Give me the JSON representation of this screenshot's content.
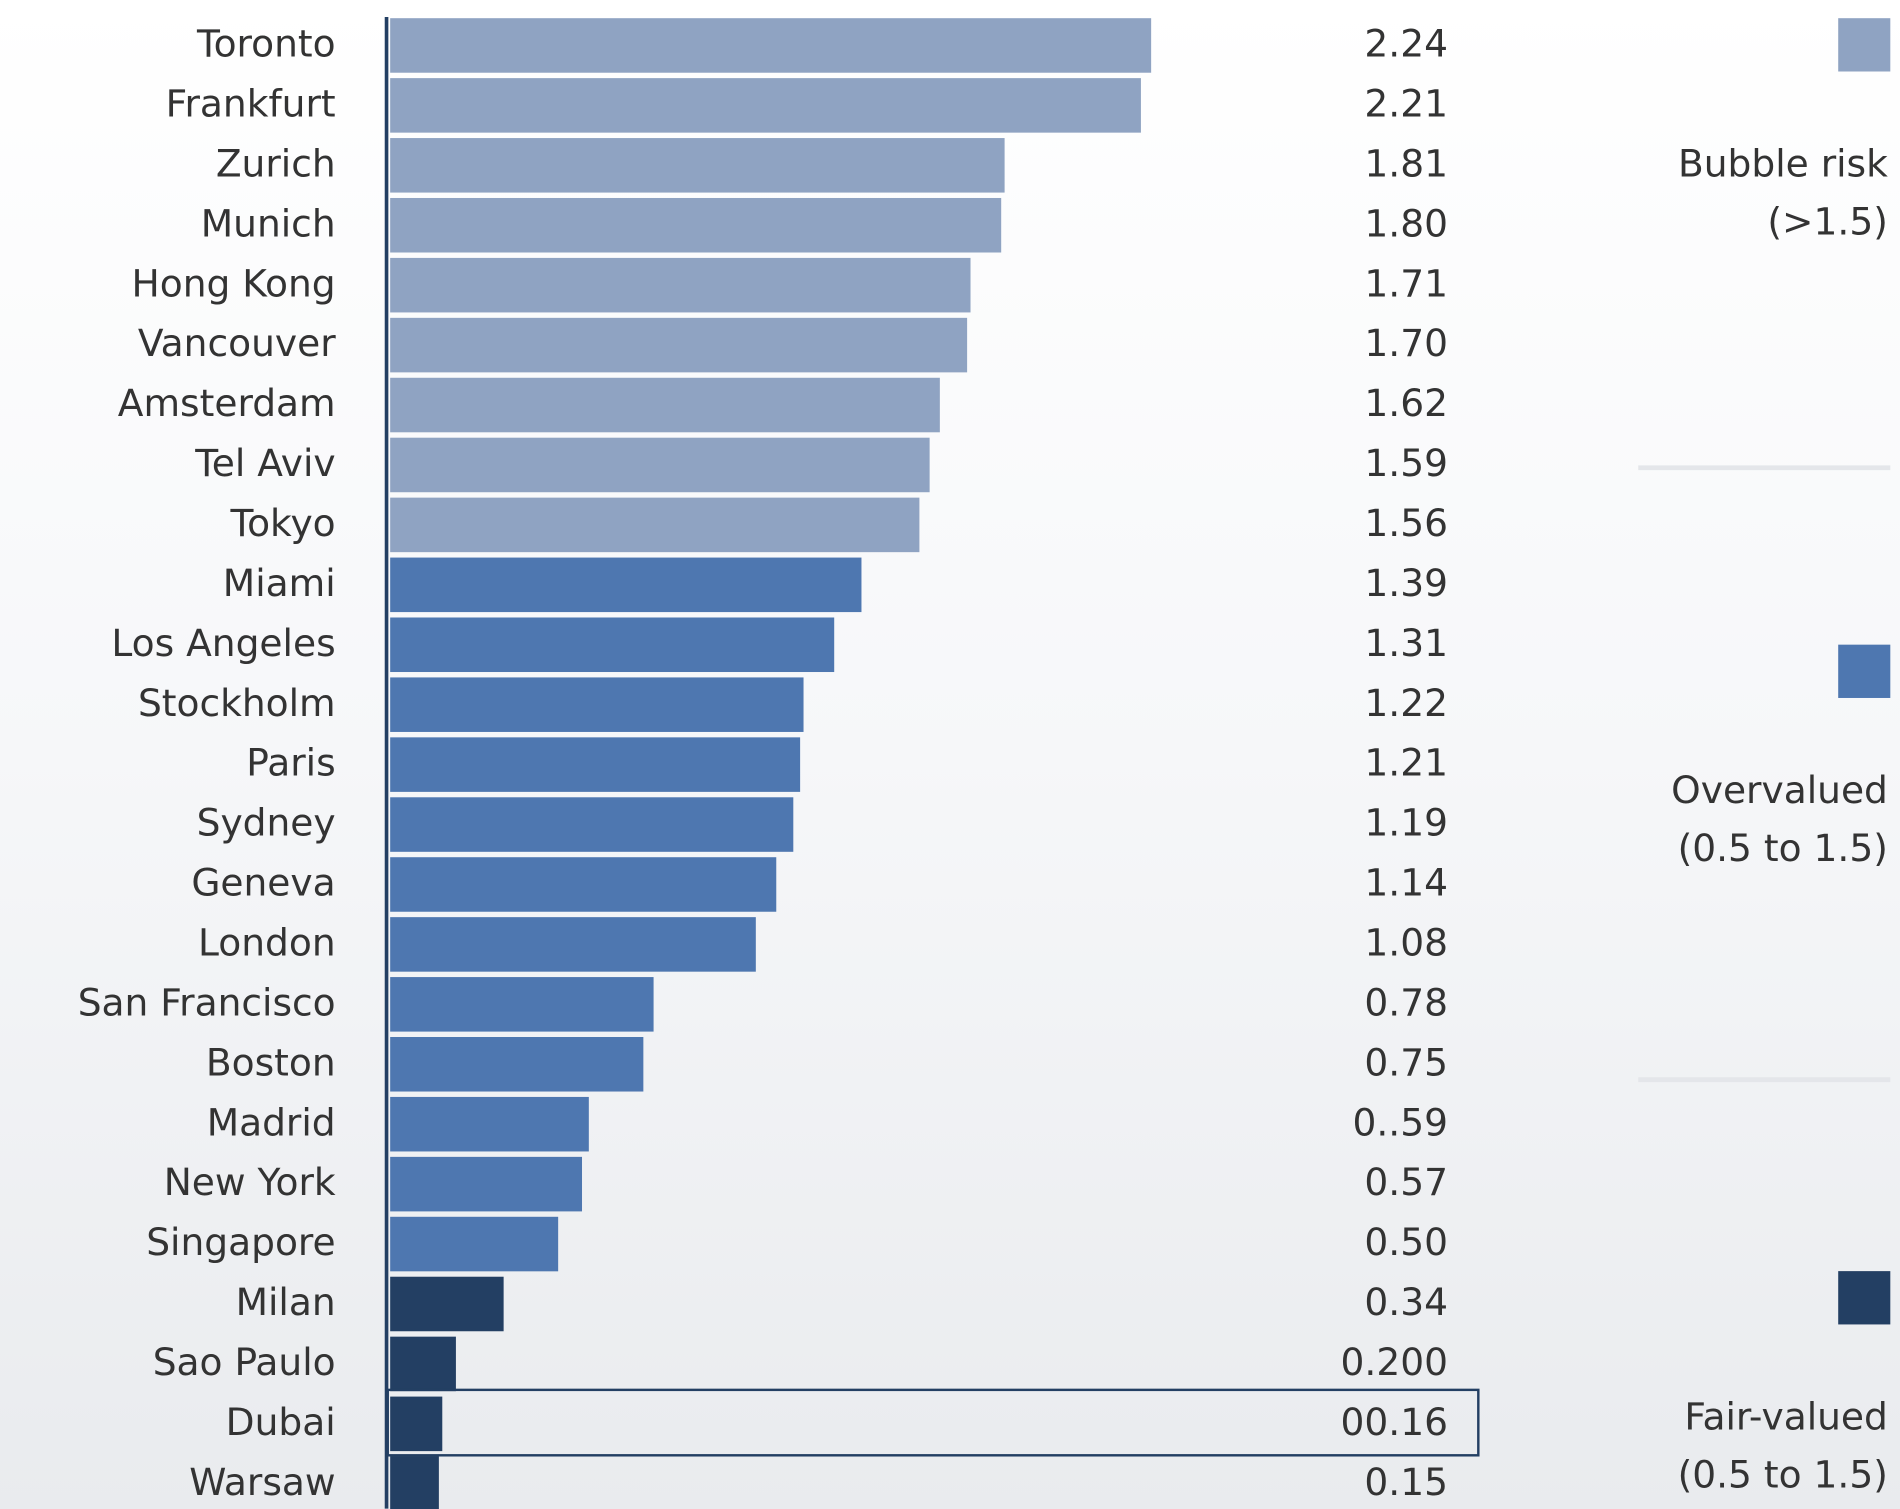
{
  "chart_data": {
    "type": "bar",
    "orientation": "horizontal",
    "categories": [
      "Toronto",
      "Frankfurt",
      "Zurich",
      "Munich",
      "Hong Kong",
      "Vancouver",
      "Amsterdam",
      "Tel Aviv",
      "Tokyo",
      "Miami",
      "Los Angeles",
      "Stockholm",
      "Paris",
      "Sydney",
      "Geneva",
      "London",
      "San Francisco",
      "Boston",
      "Madrid",
      "New York",
      "Singapore",
      "Milan",
      "Sao Paulo",
      "Dubai",
      "Warsaw"
    ],
    "values": [
      2.24,
      2.21,
      1.81,
      1.8,
      1.71,
      1.7,
      1.62,
      1.59,
      1.56,
      1.39,
      1.31,
      1.22,
      1.21,
      1.19,
      1.14,
      1.08,
      0.78,
      0.75,
      0.59,
      0.57,
      0.5,
      0.34,
      0.2,
      0.16,
      0.15
    ],
    "value_labels": [
      "2.24",
      "2.21",
      "1.81",
      "1.80",
      "1.71",
      "1.70",
      "1.62",
      "1.59",
      "1.56",
      "1.39",
      "1.31",
      "1.22",
      "1.21",
      "1.19",
      "1.14",
      "1.08",
      "0.78",
      "0.75",
      "0..59",
      "0.57",
      "0.50",
      "0.34",
      "0.200",
      "00.16",
      "0.15"
    ],
    "colors": [
      "#8fa3c2",
      "#8fa3c2",
      "#8fa3c2",
      "#8fa3c2",
      "#8fa3c2",
      "#8fa3c2",
      "#8fa3c2",
      "#8fa3c2",
      "#8fa3c2",
      "#4e77b0",
      "#4e77b0",
      "#4e77b0",
      "#4e77b0",
      "#4e77b0",
      "#4e77b0",
      "#4e77b0",
      "#4e77b0",
      "#4e77b0",
      "#4e77b0",
      "#4e77b0",
      "#4e77b0",
      "#233f63",
      "#233f63",
      "#233f63",
      "#233f63"
    ],
    "legend": [
      {
        "color": "#8fa3c2",
        "lines": [
          "Bubble risk",
          "(>1.5)"
        ]
      },
      {
        "color": "#4e77b0",
        "lines": [
          "Overvalued",
          "(0.5 to 1.5)"
        ]
      },
      {
        "color": "#233f63",
        "lines": [
          "Fair-valued",
          "(0.5 to 1.5)"
        ]
      }
    ]
  }
}
